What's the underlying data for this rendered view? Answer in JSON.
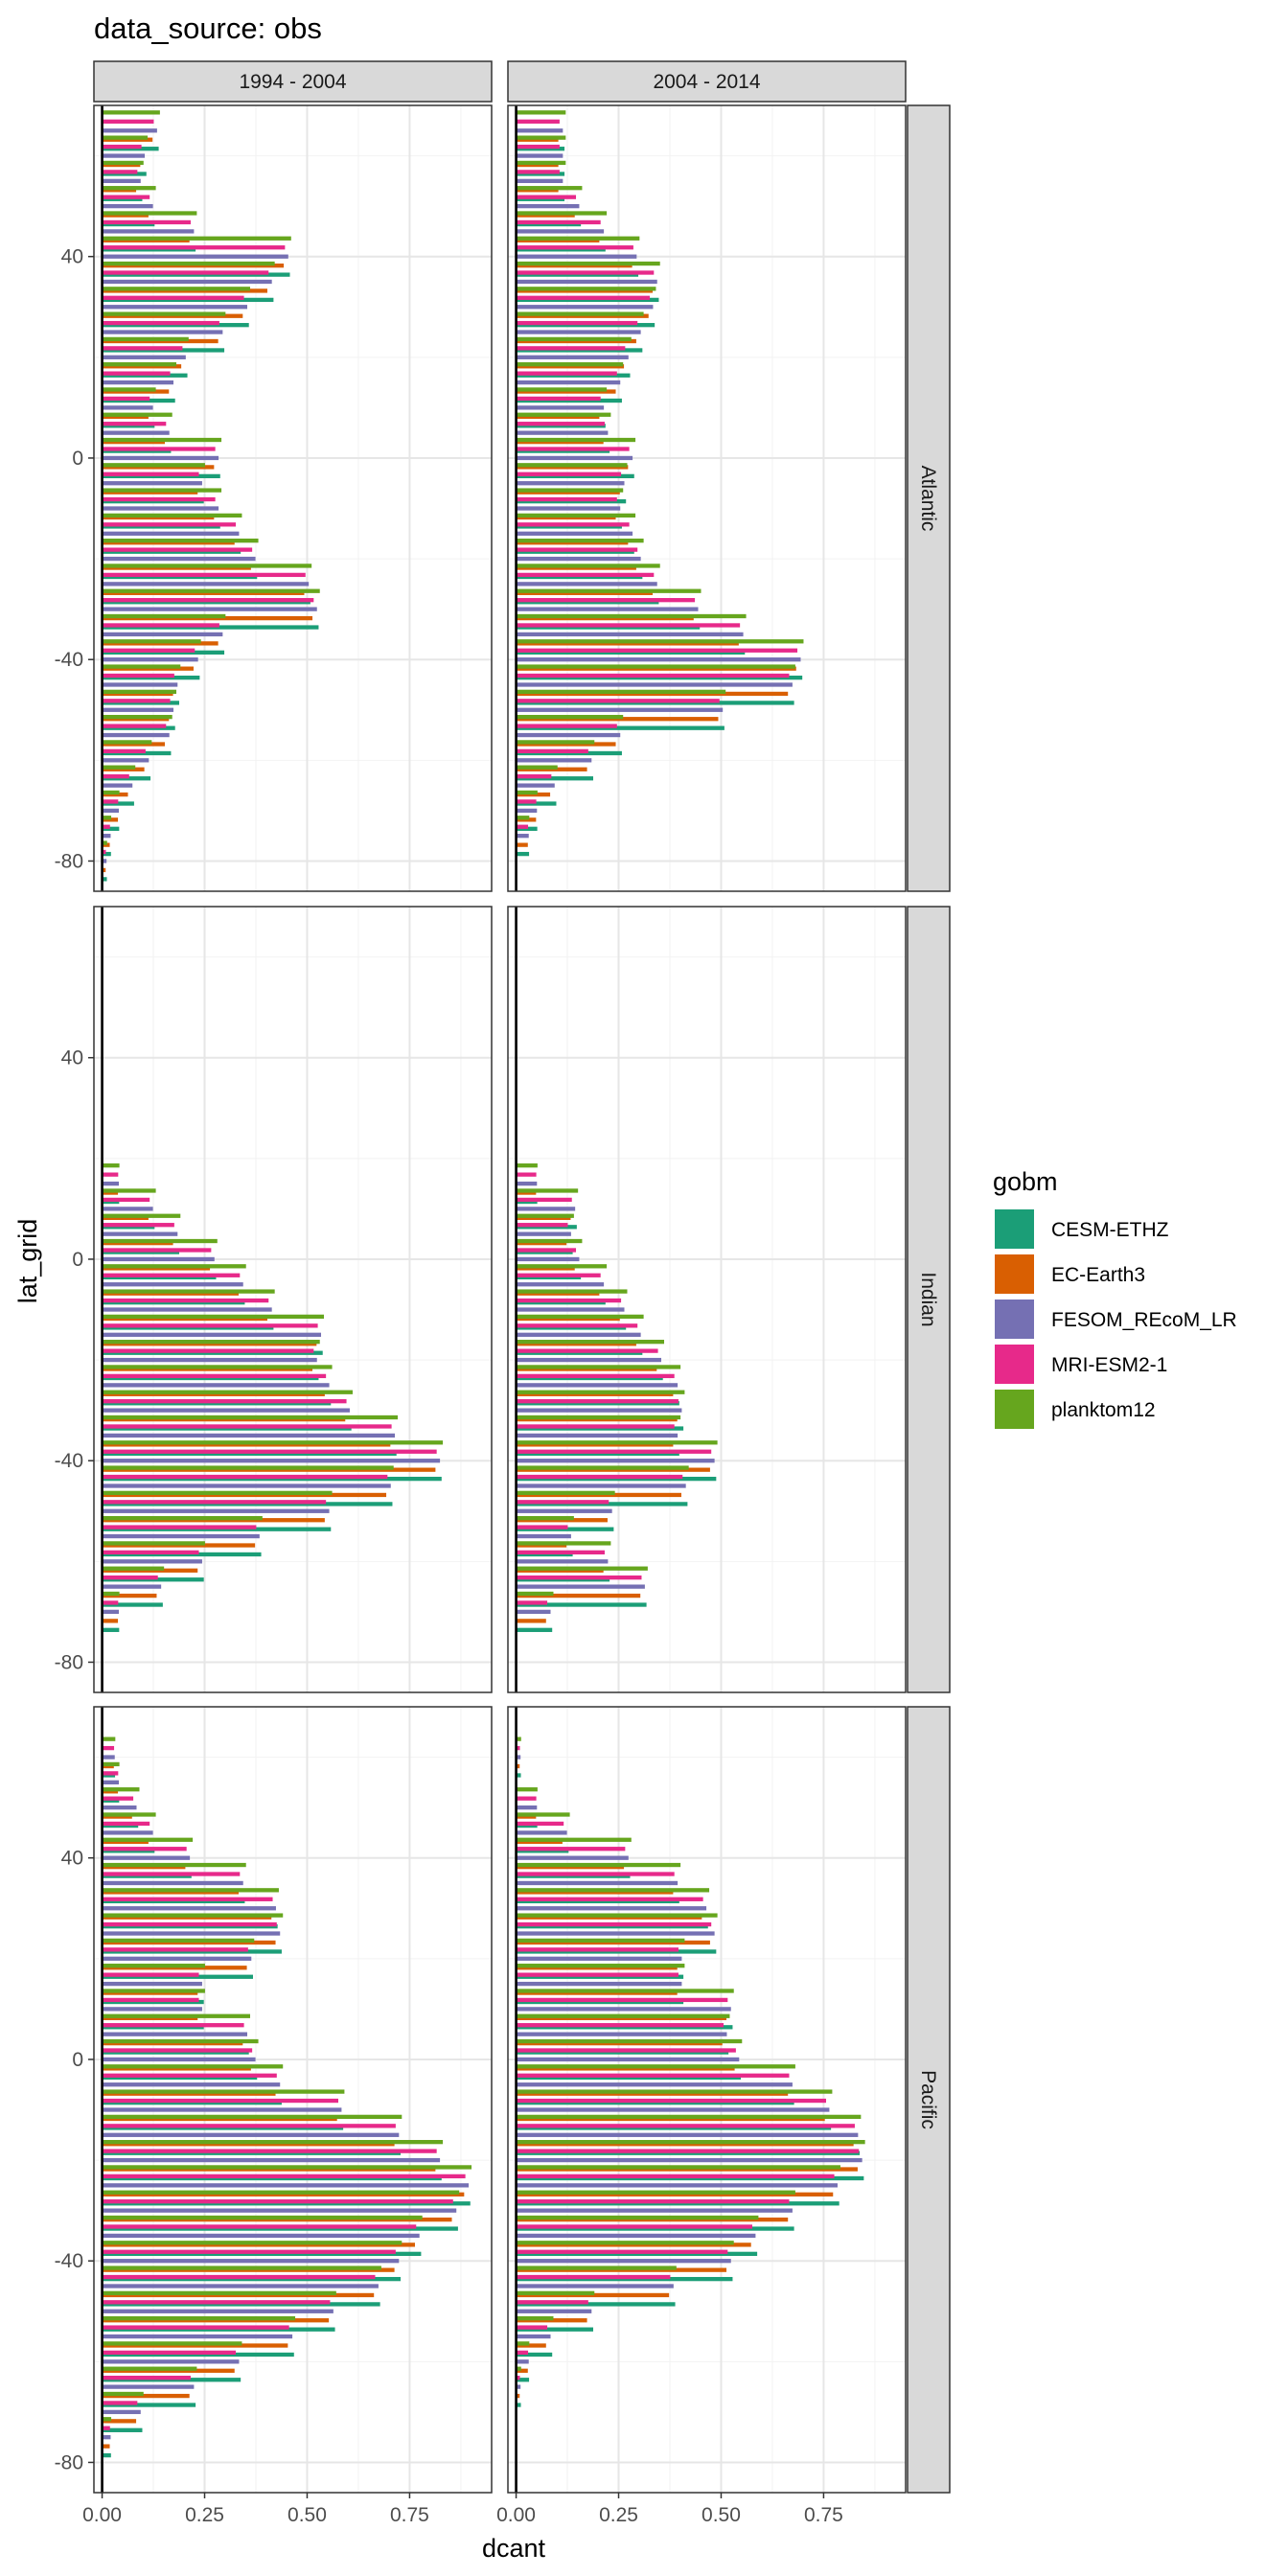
{
  "chart_data": {
    "type": "bar",
    "orientation": "horizontal",
    "title": "data_source: obs",
    "xlabel": "dcant",
    "ylabel": "lat_grid",
    "xlim": [
      -0.02,
      0.95
    ],
    "ylim": [
      -86,
      70
    ],
    "x_ticks": [
      0.0,
      0.25,
      0.5,
      0.75
    ],
    "x_tick_labels": [
      "0.00",
      "0.25",
      "0.50",
      "0.75"
    ],
    "y_ticks": [
      40,
      0,
      -40,
      -80
    ],
    "y_tick_labels": [
      "40",
      "0",
      "-40",
      "-80"
    ],
    "grid": true,
    "facet_columns": [
      "1994 - 2004",
      "2004 - 2014"
    ],
    "facet_rows": [
      "Atlantic",
      "Indian",
      "Pacific"
    ],
    "legend": {
      "title": "gobm",
      "position": "right",
      "entries": [
        "CESM-ETHZ",
        "EC-Earth3",
        "FESOM_REcoM_LR",
        "MRI-ESM2-1",
        "planktom12"
      ]
    },
    "colors": {
      "CESM-ETHZ": "#1b9e77",
      "EC-Earth3": "#d95f02",
      "FESOM_REcoM_LR": "#7570b3",
      "MRI-ESM2-1": "#e7298a",
      "planktom12": "#66a61e"
    },
    "lat": [
      65,
      60,
      55,
      50,
      45,
      40,
      35,
      30,
      25,
      20,
      15,
      10,
      5,
      0,
      -5,
      -10,
      -15,
      -20,
      -25,
      -30,
      -35,
      -40,
      -45,
      -50,
      -55,
      -60,
      -65,
      -70,
      -75,
      -80
    ],
    "panels": [
      {
        "row": "Atlantic",
        "col": "1994 - 2004",
        "values": [
          0.13,
          0.1,
          0.09,
          0.12,
          0.22,
          0.45,
          0.41,
          0.35,
          0.29,
          0.2,
          0.17,
          0.12,
          0.16,
          0.28,
          0.24,
          0.28,
          0.33,
          0.37,
          0.5,
          0.52,
          0.29,
          0.23,
          0.18,
          0.17,
          0.16,
          0.11,
          0.07,
          0.04,
          0.02,
          0.01
        ]
      },
      {
        "row": "Atlantic",
        "col": "2004 - 2014",
        "values": [
          0.11,
          0.11,
          0.11,
          0.15,
          0.21,
          0.29,
          0.34,
          0.33,
          0.3,
          0.27,
          0.25,
          0.21,
          0.22,
          0.28,
          0.26,
          0.25,
          0.28,
          0.3,
          0.34,
          0.44,
          0.55,
          0.69,
          0.67,
          0.5,
          0.25,
          0.18,
          0.09,
          0.05,
          0.03,
          0.0
        ]
      },
      {
        "row": "Indian",
        "col": "1994 - 2004",
        "values": [
          null,
          null,
          null,
          null,
          null,
          null,
          null,
          null,
          null,
          0.0,
          0.04,
          0.12,
          0.18,
          0.27,
          0.34,
          0.41,
          0.53,
          0.52,
          0.55,
          0.6,
          0.71,
          0.82,
          0.7,
          0.55,
          0.38,
          0.24,
          0.14,
          0.04,
          null,
          null
        ]
      },
      {
        "row": "Indian",
        "col": "2004 - 2014",
        "values": [
          null,
          null,
          null,
          null,
          null,
          null,
          null,
          null,
          null,
          null,
          0.05,
          0.14,
          0.13,
          0.15,
          0.21,
          0.26,
          0.3,
          0.35,
          0.39,
          0.4,
          0.39,
          0.48,
          0.41,
          0.23,
          0.13,
          0.22,
          0.31,
          0.08,
          null,
          null
        ]
      },
      {
        "row": "Pacific",
        "col": "1994 - 2004",
        "values": [
          0.0,
          0.03,
          0.04,
          0.08,
          0.12,
          0.21,
          0.34,
          0.42,
          0.43,
          0.36,
          0.24,
          0.24,
          0.35,
          0.37,
          0.43,
          0.58,
          0.72,
          0.82,
          0.89,
          0.86,
          0.77,
          0.72,
          0.67,
          0.56,
          0.46,
          0.33,
          0.22,
          0.09,
          0.02,
          null
        ]
      },
      {
        "row": "Pacific",
        "col": "2004 - 2014",
        "values": [
          0.0,
          0.01,
          0.0,
          0.05,
          0.12,
          0.27,
          0.39,
          0.46,
          0.48,
          0.4,
          0.4,
          0.52,
          0.51,
          0.54,
          0.67,
          0.76,
          0.83,
          0.84,
          0.78,
          0.67,
          0.58,
          0.52,
          0.38,
          0.18,
          0.08,
          0.03,
          0.01,
          0.0,
          null,
          null
        ]
      }
    ]
  }
}
